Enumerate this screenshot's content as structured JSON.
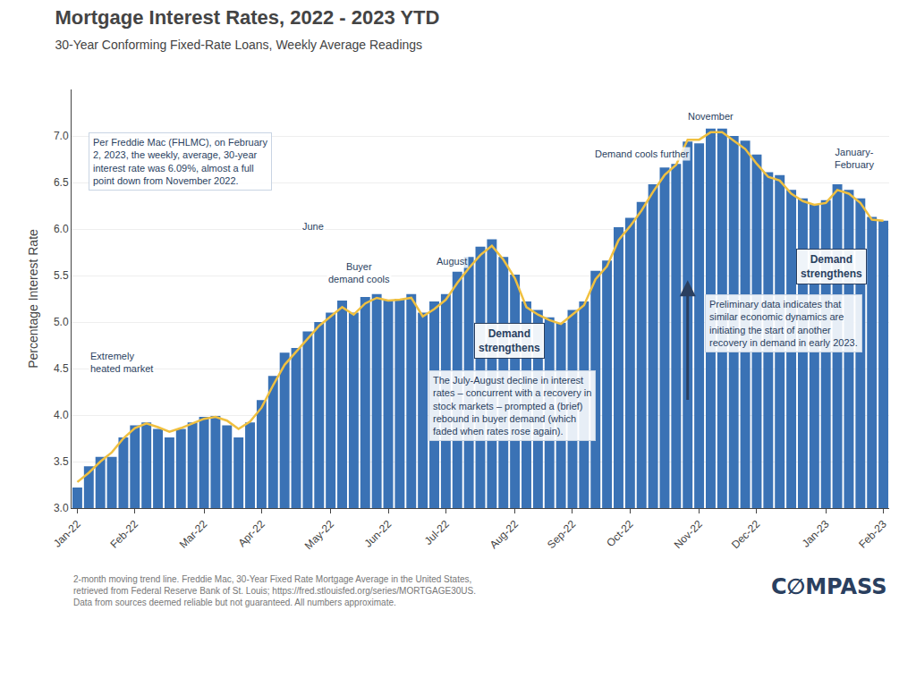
{
  "chart_data": {
    "type": "bar",
    "title": "Mortgage Interest Rates, 2022 - 2023 YTD",
    "subtitle": "30-Year Conforming Fixed-Rate Loans, Weekly Average Readings",
    "y_label": "Percentage Interest Rate",
    "categories": [
      "Jan-22",
      null,
      null,
      null,
      null,
      "Feb-22",
      null,
      null,
      null,
      null,
      null,
      "Mar-22",
      null,
      null,
      null,
      null,
      "Apr-22",
      null,
      null,
      null,
      null,
      null,
      "May-22",
      null,
      null,
      null,
      null,
      "Jun-22",
      null,
      null,
      null,
      null,
      "Jul-22",
      null,
      null,
      null,
      null,
      null,
      "Aug-22",
      null,
      null,
      null,
      null,
      "Sep-22",
      null,
      null,
      null,
      null,
      "Oct-22",
      null,
      null,
      null,
      null,
      null,
      "Nov-22",
      null,
      null,
      null,
      null,
      "Dec-22",
      null,
      null,
      null,
      null,
      null,
      "Jan-23",
      null,
      null,
      null,
      null,
      "Feb-23"
    ],
    "series": [
      {
        "type": "bar",
        "color": "#3a72b5",
        "values": [
          3.22,
          3.45,
          3.55,
          3.55,
          3.76,
          3.89,
          3.92,
          3.85,
          3.76,
          3.85,
          3.92,
          3.98,
          3.99,
          3.89,
          3.76,
          3.92,
          4.16,
          4.42,
          4.67,
          4.72,
          4.9,
          5.0,
          5.1,
          5.23,
          5.1,
          5.27,
          5.3,
          5.23,
          5.25,
          5.3,
          5.1,
          5.22,
          5.3,
          5.54,
          5.7,
          5.81,
          5.89,
          5.7,
          5.51,
          5.22,
          5.13,
          5.05,
          4.99,
          5.13,
          5.22,
          5.55,
          5.66,
          6.02,
          6.12,
          6.29,
          6.48,
          6.66,
          6.7,
          6.94,
          6.92,
          7.08,
          7.08,
          7.0,
          6.95,
          6.8,
          6.61,
          6.58,
          6.42,
          6.33,
          6.27,
          6.31,
          6.48,
          6.42,
          6.33,
          6.13,
          6.09
        ]
      },
      {
        "type": "line",
        "color": "#f0c040",
        "values": [
          3.28,
          3.38,
          3.5,
          3.6,
          3.75,
          3.86,
          3.91,
          3.87,
          3.82,
          3.86,
          3.91,
          3.96,
          3.98,
          3.94,
          3.85,
          3.93,
          4.08,
          4.32,
          4.54,
          4.68,
          4.83,
          4.96,
          5.06,
          5.16,
          5.08,
          5.2,
          5.26,
          5.23,
          5.24,
          5.26,
          5.06,
          5.14,
          5.24,
          5.42,
          5.58,
          5.72,
          5.82,
          5.67,
          5.47,
          5.16,
          5.08,
          5.02,
          4.98,
          5.08,
          5.18,
          5.46,
          5.6,
          5.88,
          6.03,
          6.2,
          6.4,
          6.58,
          6.69,
          6.96,
          6.96,
          7.04,
          7.04,
          6.95,
          6.86,
          6.7,
          6.56,
          6.52,
          6.38,
          6.3,
          6.26,
          6.28,
          6.42,
          6.38,
          6.28,
          6.1,
          6.09
        ]
      }
    ],
    "ylim": [
      3.0,
      7.5
    ],
    "yticks": [
      {
        "value": 3.0,
        "label": "3.0"
      },
      3.5,
      {
        "value": 4.0,
        "label": "4.0"
      },
      4.5,
      {
        "value": 5.0,
        "label": "5.0"
      },
      5.5,
      {
        "value": 6.0,
        "label": "6.0"
      },
      6.5,
      {
        "value": 7.0,
        "label": "7.0"
      }
    ],
    "grid": true,
    "annotations": [
      "Extremely\nheated market",
      "Buyer\ndemand cools",
      "June",
      "August",
      "Demand cools further",
      "November",
      "January-\nFebruary",
      "Demand\nstrengthens",
      "Demand\nstrengthens",
      "Per Freddie Mac (FHLMC), on February\n2, 2023, the weekly, average, 30-year\ninterest rate was 6.09%, almost a full\npoint down from November 2022.",
      "The July-August decline in interest\nrates – concurrent with a recovery in\nstock markets – prompted a (brief)\nrebound in buyer demand (which\nfaded when rates rose again).",
      "Preliminary data indicates that\nsimilar economic dynamics are\ninitiating the start of another\nrecovery in demand in early 2023.",
      "2-month moving trend line. Freddie Mac, 30-Year Fixed Rate Mortgage Average in the United States,\nretrieved from Federal Reserve Bank of St. Louis; https://fred.stlouisfed.org/series/MORTGAGE30US.\nData from sources deemed reliable but not guaranteed. All numbers approximate.",
      "C∅MPASS"
    ]
  }
}
